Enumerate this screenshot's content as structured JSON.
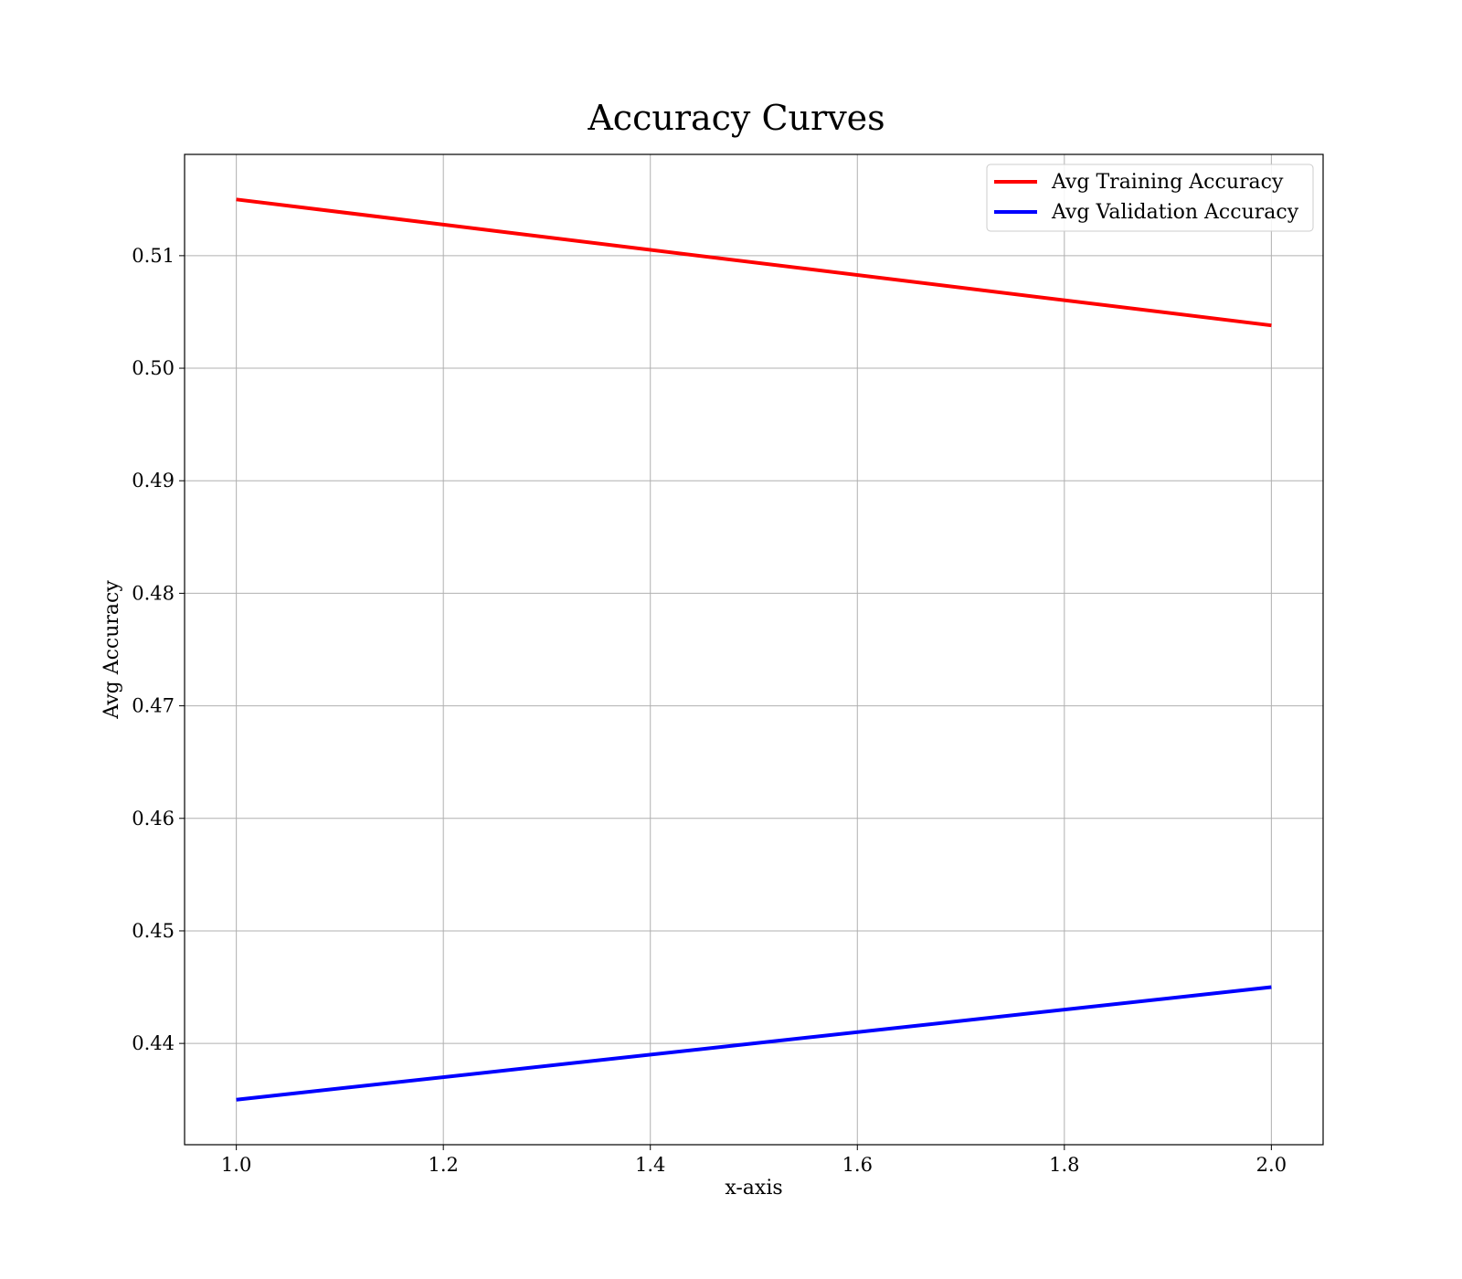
{
  "chart_data": {
    "type": "line",
    "title": "Accuracy Curves",
    "xlabel": "x-axis",
    "ylabel": "Avg Accuracy",
    "xlim": [
      0.95,
      2.05
    ],
    "ylim": [
      0.431,
      0.519
    ],
    "xticks": [
      "1.0",
      "1.2",
      "1.4",
      "1.6",
      "1.8",
      "2.0"
    ],
    "yticks": [
      "0.44",
      "0.45",
      "0.46",
      "0.47",
      "0.48",
      "0.49",
      "0.50",
      "0.51"
    ],
    "grid": true,
    "legend_position": "top-right",
    "series": [
      {
        "name": "Avg Training Accuracy",
        "color": "#ff0000",
        "x": [
          1.0,
          2.0
        ],
        "y": [
          0.515,
          0.5038
        ]
      },
      {
        "name": "Avg Validation Accuracy",
        "color": "#0000ff",
        "x": [
          1.0,
          2.0
        ],
        "y": [
          0.435,
          0.445
        ]
      }
    ]
  }
}
